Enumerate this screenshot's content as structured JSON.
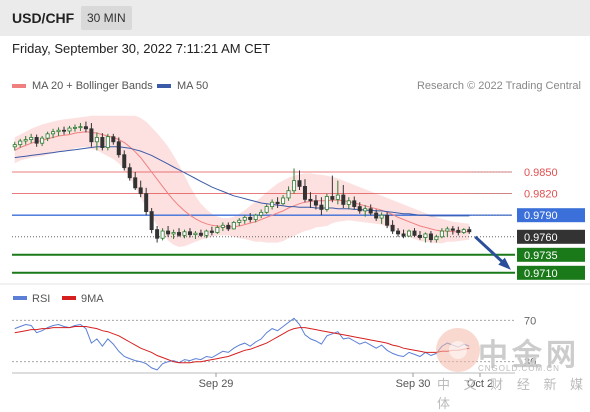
{
  "header": {
    "pair": "USD/CHF",
    "timeframe": "30 MIN"
  },
  "datetime": "Friday, September 30, 2022 7:11:21 AM CET",
  "legend": [
    {
      "label": "MA 20 + Bollinger Bands",
      "color": "#f08080"
    },
    {
      "label": "MA 50",
      "color": "#3b5ba8"
    }
  ],
  "credit": "Research © 2022 Trading Central",
  "rsi_legend": [
    {
      "label": "RSI",
      "color": "#5b7fd6"
    },
    {
      "label": "9MA",
      "color": "#d62020"
    }
  ],
  "watermark": {
    "brand": "中金网",
    "domain": "CNGOLD.COM.CN",
    "slogan": "中 文 财 经 新 媒 体"
  },
  "chart_data": [
    {
      "type": "candlestick",
      "title": "USD/CHF 30 MIN",
      "ylim": [
        0.97,
        0.995
      ],
      "x_ticks": [
        "Sep 29",
        "Sep 30",
        "Oct 2"
      ],
      "candles": [
        [
          0.9885,
          0.9892,
          0.988,
          0.9888
        ],
        [
          0.9888,
          0.9896,
          0.9884,
          0.9893
        ],
        [
          0.9893,
          0.99,
          0.9888,
          0.9895
        ],
        [
          0.9895,
          0.9903,
          0.989,
          0.9898
        ],
        [
          0.9898,
          0.9902,
          0.9885,
          0.989
        ],
        [
          0.989,
          0.99,
          0.9886,
          0.9897
        ],
        [
          0.9897,
          0.9906,
          0.9893,
          0.9903
        ],
        [
          0.9903,
          0.991,
          0.9897,
          0.9906
        ],
        [
          0.9906,
          0.9912,
          0.99,
          0.9908
        ],
        [
          0.9908,
          0.9913,
          0.9902,
          0.9907
        ],
        [
          0.9907,
          0.9914,
          0.9903,
          0.9911
        ],
        [
          0.9911,
          0.9916,
          0.9906,
          0.9912
        ],
        [
          0.9912,
          0.9918,
          0.9907,
          0.9913
        ],
        [
          0.9913,
          0.992,
          0.9905,
          0.991
        ],
        [
          0.991,
          0.9918,
          0.9885,
          0.9892
        ],
        [
          0.9892,
          0.9905,
          0.988,
          0.9898
        ],
        [
          0.9898,
          0.9904,
          0.988,
          0.9884
        ],
        [
          0.9884,
          0.9903,
          0.988,
          0.9899
        ],
        [
          0.9899,
          0.9903,
          0.9888,
          0.9892
        ],
        [
          0.9892,
          0.9898,
          0.987,
          0.9874
        ],
        [
          0.9874,
          0.988,
          0.9852,
          0.9856
        ],
        [
          0.9856,
          0.9862,
          0.9838,
          0.9842
        ],
        [
          0.9842,
          0.985,
          0.9825,
          0.9828
        ],
        [
          0.9828,
          0.9838,
          0.9815,
          0.982
        ],
        [
          0.982,
          0.9828,
          0.979,
          0.9795
        ],
        [
          0.9795,
          0.98,
          0.9765,
          0.977
        ],
        [
          0.977,
          0.9775,
          0.9752,
          0.9758
        ],
        [
          0.9758,
          0.9772,
          0.9755,
          0.9768
        ],
        [
          0.9768,
          0.9775,
          0.976,
          0.9764
        ],
        [
          0.9764,
          0.977,
          0.9757,
          0.9766
        ],
        [
          0.9766,
          0.9772,
          0.976,
          0.9762
        ],
        [
          0.9762,
          0.977,
          0.9758,
          0.9767
        ],
        [
          0.9767,
          0.9772,
          0.9759,
          0.9763
        ],
        [
          0.9763,
          0.9768,
          0.9757,
          0.9765
        ],
        [
          0.9765,
          0.977,
          0.976,
          0.9762
        ],
        [
          0.9762,
          0.977,
          0.9758,
          0.9768
        ],
        [
          0.9768,
          0.9774,
          0.9762,
          0.9766
        ],
        [
          0.9766,
          0.9776,
          0.9764,
          0.9773
        ],
        [
          0.9773,
          0.978,
          0.9768,
          0.9776
        ],
        [
          0.9776,
          0.978,
          0.9768,
          0.9771
        ],
        [
          0.9771,
          0.9782,
          0.977,
          0.978
        ],
        [
          0.978,
          0.9786,
          0.9775,
          0.9783
        ],
        [
          0.9783,
          0.979,
          0.9778,
          0.9787
        ],
        [
          0.9787,
          0.9793,
          0.978,
          0.9784
        ],
        [
          0.9784,
          0.9792,
          0.978,
          0.979
        ],
        [
          0.979,
          0.9798,
          0.9786,
          0.9794
        ],
        [
          0.9794,
          0.9805,
          0.9792,
          0.9802
        ],
        [
          0.9802,
          0.9812,
          0.9798,
          0.9808
        ],
        [
          0.9808,
          0.9815,
          0.98,
          0.9806
        ],
        [
          0.9806,
          0.9818,
          0.9804,
          0.9814
        ],
        [
          0.9814,
          0.983,
          0.981,
          0.9824
        ],
        [
          0.9824,
          0.9855,
          0.982,
          0.9838
        ],
        [
          0.9838,
          0.9852,
          0.9825,
          0.983
        ],
        [
          0.983,
          0.984,
          0.9808,
          0.9812
        ],
        [
          0.9812,
          0.9822,
          0.98,
          0.981
        ],
        [
          0.981,
          0.9818,
          0.9798,
          0.9804
        ],
        [
          0.9804,
          0.9815,
          0.979,
          0.9798
        ],
        [
          0.9798,
          0.982,
          0.9795,
          0.9816
        ],
        [
          0.9816,
          0.9845,
          0.9808,
          0.9812
        ],
        [
          0.9812,
          0.9838,
          0.9805,
          0.9818
        ],
        [
          0.9818,
          0.9832,
          0.98,
          0.9805
        ],
        [
          0.9805,
          0.9815,
          0.9798,
          0.981
        ],
        [
          0.981,
          0.9816,
          0.9798,
          0.9802
        ],
        [
          0.9802,
          0.9808,
          0.9792,
          0.9796
        ],
        [
          0.9796,
          0.9804,
          0.9788,
          0.9799
        ],
        [
          0.9799,
          0.9805,
          0.979,
          0.9793
        ],
        [
          0.9793,
          0.9798,
          0.9782,
          0.9786
        ],
        [
          0.9786,
          0.9794,
          0.9778,
          0.979
        ],
        [
          0.979,
          0.9794,
          0.9772,
          0.9776
        ],
        [
          0.9776,
          0.9783,
          0.9764,
          0.9768
        ],
        [
          0.9768,
          0.9772,
          0.976,
          0.9764
        ],
        [
          0.9764,
          0.977,
          0.9758,
          0.9761
        ],
        [
          0.9761,
          0.977,
          0.976,
          0.9768
        ],
        [
          0.9768,
          0.9772,
          0.976,
          0.9762
        ],
        [
          0.9762,
          0.9768,
          0.9756,
          0.9759
        ],
        [
          0.9759,
          0.9766,
          0.9752,
          0.9764
        ],
        [
          0.9764,
          0.9768,
          0.9752,
          0.9756
        ],
        [
          0.9756,
          0.9763,
          0.9752,
          0.976
        ],
        [
          0.976,
          0.9772,
          0.9758,
          0.9768
        ],
        [
          0.9768,
          0.9774,
          0.976,
          0.9771
        ],
        [
          0.9771,
          0.9775,
          0.9763,
          0.9769
        ],
        [
          0.9769,
          0.9774,
          0.9762,
          0.9766
        ],
        [
          0.9766,
          0.9772,
          0.9764,
          0.977
        ],
        [
          0.977,
          0.9774,
          0.9764,
          0.9767
        ]
      ],
      "ma20": [
        0.988,
        0.9884,
        0.9887,
        0.989,
        0.9892,
        0.9894,
        0.9896,
        0.9898,
        0.99,
        0.9901,
        0.9902,
        0.9904,
        0.9905,
        0.9906,
        0.9905,
        0.9904,
        0.9902,
        0.99,
        0.9898,
        0.9895,
        0.9891,
        0.9885,
        0.9878,
        0.987,
        0.986,
        0.985,
        0.984,
        0.983,
        0.982,
        0.9811,
        0.9803,
        0.9796,
        0.979,
        0.9785,
        0.9781,
        0.9778,
        0.9776,
        0.9775,
        0.9774,
        0.9774,
        0.9774,
        0.9775,
        0.9777,
        0.9779,
        0.9781,
        0.9784,
        0.9787,
        0.979,
        0.9793,
        0.9796,
        0.98,
        0.9803,
        0.9806,
        0.9808,
        0.9809,
        0.981,
        0.981,
        0.981,
        0.9811,
        0.9811,
        0.981,
        0.9809,
        0.9807,
        0.9805,
        0.9803,
        0.9801,
        0.9799,
        0.9797,
        0.9794,
        0.9791,
        0.9787,
        0.9784,
        0.9781,
        0.9778,
        0.9775,
        0.9773,
        0.9771,
        0.9769,
        0.9768,
        0.9768,
        0.9767,
        0.9767,
        0.9767,
        0.9767
      ],
      "bb_upper": [
        0.9898,
        0.9902,
        0.9906,
        0.991,
        0.9913,
        0.9916,
        0.9918,
        0.992,
        0.9922,
        0.9923,
        0.9924,
        0.9925,
        0.9926,
        0.9927,
        0.9928,
        0.9928,
        0.9928,
        0.9928,
        0.9928,
        0.9928,
        0.9928,
        0.9928,
        0.9928,
        0.9925,
        0.992,
        0.9912,
        0.9904,
        0.9895,
        0.9885,
        0.9873,
        0.986,
        0.9845,
        0.983,
        0.9817,
        0.9806,
        0.9798,
        0.9792,
        0.9788,
        0.9786,
        0.9786,
        0.9788,
        0.9792,
        0.9797,
        0.9803,
        0.9809,
        0.9815,
        0.9822,
        0.9828,
        0.9834,
        0.9838,
        0.9842,
        0.9845,
        0.9847,
        0.9848,
        0.9848,
        0.9847,
        0.9846,
        0.9845,
        0.9843,
        0.9841,
        0.9838,
        0.9835,
        0.9832,
        0.9829,
        0.9826,
        0.9823,
        0.982,
        0.9817,
        0.9814,
        0.9811,
        0.9808,
        0.9805,
        0.9802,
        0.9799,
        0.9796,
        0.9793,
        0.979,
        0.9787,
        0.9785,
        0.9783,
        0.9781,
        0.978,
        0.9779,
        0.9778
      ],
      "bb_lower": [
        0.9862,
        0.9866,
        0.9868,
        0.987,
        0.9871,
        0.9872,
        0.9874,
        0.9876,
        0.9878,
        0.9879,
        0.988,
        0.9883,
        0.9884,
        0.9885,
        0.9882,
        0.988,
        0.9876,
        0.9872,
        0.9868,
        0.9862,
        0.9854,
        0.9842,
        0.9828,
        0.9815,
        0.98,
        0.9788,
        0.9776,
        0.9765,
        0.9755,
        0.9749,
        0.9746,
        0.9747,
        0.975,
        0.9753,
        0.9756,
        0.9758,
        0.976,
        0.9762,
        0.9762,
        0.9762,
        0.976,
        0.9758,
        0.9757,
        0.9755,
        0.9753,
        0.9753,
        0.9752,
        0.9752,
        0.9752,
        0.9754,
        0.9758,
        0.9761,
        0.9765,
        0.9768,
        0.977,
        0.9773,
        0.9774,
        0.9775,
        0.9779,
        0.9781,
        0.9782,
        0.9783,
        0.9782,
        0.9781,
        0.978,
        0.9779,
        0.9778,
        0.9777,
        0.9774,
        0.9771,
        0.9766,
        0.9763,
        0.976,
        0.9757,
        0.9754,
        0.9753,
        0.9752,
        0.9751,
        0.9751,
        0.9753,
        0.9753,
        0.9754,
        0.9755,
        0.9756
      ],
      "ma50": [
        0.987,
        0.9871,
        0.9872,
        0.9873,
        0.9874,
        0.9875,
        0.9876,
        0.9877,
        0.9878,
        0.9879,
        0.988,
        0.9881,
        0.9882,
        0.9883,
        0.9884,
        0.9885,
        0.9885,
        0.9885,
        0.9885,
        0.9885,
        0.9884,
        0.9883,
        0.9881,
        0.9879,
        0.9876,
        0.9873,
        0.9869,
        0.9865,
        0.9861,
        0.9857,
        0.9853,
        0.9849,
        0.9845,
        0.9841,
        0.9837,
        0.9833,
        0.9829,
        0.9826,
        0.9823,
        0.982,
        0.9817,
        0.9815,
        0.9813,
        0.9811,
        0.9809,
        0.9807,
        0.9806,
        0.9805,
        0.9804,
        0.9803,
        0.9802,
        0.9802,
        0.9801,
        0.9801,
        0.9801,
        0.98,
        0.98,
        0.98,
        0.98,
        0.9799,
        0.9799,
        0.9799,
        0.9798,
        0.9798,
        0.9797,
        0.9797,
        0.9796,
        0.9796,
        0.9795,
        0.9794,
        0.9793,
        0.9792,
        0.9792,
        0.9791,
        0.979,
        0.979,
        0.9789,
        0.9789,
        0.9789,
        0.9789,
        0.9789,
        0.9789,
        0.9789,
        0.9789
      ],
      "levels": [
        {
          "value": 0.985,
          "label": "0.9850",
          "kind": "resistance"
        },
        {
          "value": 0.982,
          "label": "0.9820",
          "kind": "resistance"
        },
        {
          "value": 0.979,
          "label": "0.9790",
          "kind": "pivot"
        },
        {
          "value": 0.976,
          "label": "0.9760",
          "kind": "last"
        },
        {
          "value": 0.9735,
          "label": "0.9735",
          "kind": "support"
        },
        {
          "value": 0.971,
          "label": "0.9710",
          "kind": "support"
        }
      ],
      "forecast_arrow": {
        "from": 0.976,
        "to": 0.9718,
        "direction": "down"
      },
      "colors": {
        "up": "#2e7d32",
        "down": "#333333",
        "resistance": "#e05050",
        "pivot": "#3b6fd9",
        "support": "#1a7a1a",
        "last": "#333333",
        "band": "#fde0e0"
      }
    },
    {
      "type": "line",
      "title": "RSI",
      "ylim": [
        20,
        80
      ],
      "y_ticks": [
        70,
        30
      ],
      "rsi": [
        62,
        64,
        66,
        65,
        58,
        60,
        63,
        65,
        66,
        64,
        63,
        65,
        66,
        62,
        48,
        52,
        45,
        52,
        47,
        40,
        35,
        33,
        31,
        30,
        28,
        24,
        22,
        28,
        30,
        31,
        29,
        32,
        31,
        33,
        32,
        35,
        34,
        37,
        40,
        39,
        43,
        46,
        48,
        45,
        49,
        52,
        58,
        62,
        60,
        64,
        68,
        72,
        66,
        56,
        52,
        50,
        47,
        55,
        57,
        59,
        52,
        53,
        50,
        47,
        49,
        46,
        43,
        46,
        41,
        38,
        36,
        35,
        39,
        37,
        35,
        39,
        36,
        38,
        45,
        48,
        46,
        44,
        47,
        45
      ],
      "rsi_ma": [
        58,
        59,
        60,
        61,
        61,
        62,
        62,
        63,
        63,
        63,
        63,
        64,
        64,
        64,
        63,
        62,
        60,
        59,
        57,
        55,
        52,
        49,
        46,
        43,
        41,
        39,
        36,
        34,
        32,
        30,
        29,
        29,
        29,
        30,
        30,
        31,
        32,
        33,
        34,
        35,
        37,
        39,
        41,
        42,
        44,
        46,
        48,
        51,
        54,
        57,
        60,
        62,
        63,
        63,
        62,
        61,
        60,
        59,
        58,
        57,
        56,
        55,
        54,
        53,
        52,
        51,
        50,
        49,
        48,
        46,
        45,
        43,
        42,
        41,
        40,
        39,
        39,
        39,
        40,
        40,
        41,
        41,
        42,
        43
      ]
    }
  ]
}
